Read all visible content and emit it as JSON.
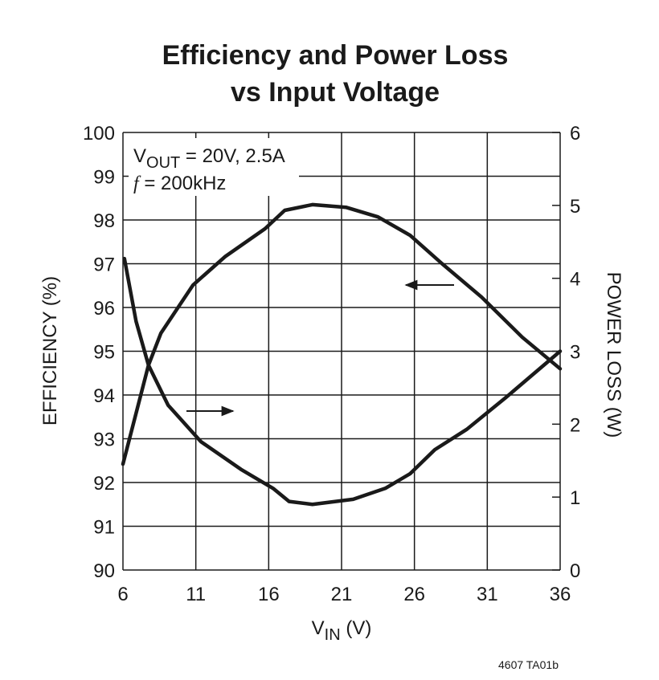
{
  "chart_data": {
    "type": "line",
    "title": [
      "Efficiency and Power Loss",
      "vs Input Voltage"
    ],
    "xlabel": [
      "V",
      "IN",
      " (V)"
    ],
    "ylabel": "EFFICIENCY (%)",
    "y2label": "POWER LOSS (W)",
    "annotation": [
      [
        "V",
        "OUT",
        " = 20V, 2.5A"
      ],
      [
        "f",
        " =  200kHz"
      ]
    ],
    "footnote": "4607 TA01b",
    "xlim": [
      6,
      36
    ],
    "xticks": [
      6,
      11,
      16,
      21,
      26,
      31,
      36
    ],
    "ylim": [
      90,
      100
    ],
    "yticks": [
      90,
      91,
      92,
      93,
      94,
      95,
      96,
      97,
      98,
      99,
      100
    ],
    "y2lim": [
      0,
      6
    ],
    "y2ticks": [
      0,
      1,
      2,
      3,
      4,
      5,
      6
    ],
    "grid": true,
    "series": [
      {
        "color": "#1a1a1a",
        "x": [
          6,
          7.75,
          8.6,
          10.8,
          13,
          15.75,
          17.1,
          19,
          21.3,
          23.5,
          25.7,
          27.9,
          30.6,
          33.4,
          36
        ],
        "values": [
          92.42,
          94.68,
          95.41,
          96.51,
          97.16,
          97.8,
          98.22,
          98.35,
          98.29,
          98.07,
          97.65,
          97.0,
          96.24,
          95.32,
          94.6
        ]
      },
      {
        "color": "#1a1a1a",
        "axis": "y2",
        "x": [
          6.1,
          6.9,
          7.75,
          9.1,
          11.35,
          14.1,
          16.3,
          17.4,
          19,
          21.8,
          24,
          25.7,
          27.4,
          29.6,
          32.3,
          36
        ],
        "values": [
          4.27,
          3.41,
          2.81,
          2.26,
          1.76,
          1.38,
          1.12,
          0.94,
          0.9,
          0.97,
          1.12,
          1.32,
          1.65,
          1.93,
          2.37,
          3.0
        ]
      }
    ]
  }
}
